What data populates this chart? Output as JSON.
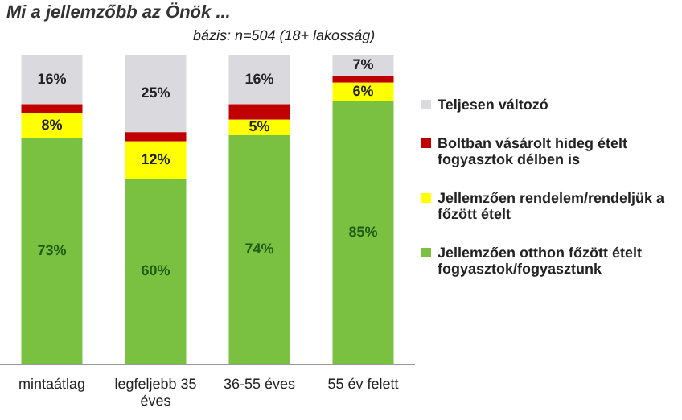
{
  "chart_data": {
    "type": "bar",
    "stacked": true,
    "title": "Mi a jellemzőbb az Önök ...",
    "subtitle": "bázis: n=504 (18+ lakosság)",
    "categories": [
      "mintaátlag",
      "legfeljebb 35 éves",
      "36-55 éves",
      "55 év felett"
    ],
    "series": [
      {
        "name": "Jellemzően otthon főzött ételt fogyasztok/fogyasztunk",
        "color": "#7ac142",
        "values": [
          73,
          60,
          74,
          85
        ],
        "value_labels": [
          "73%",
          "60%",
          "74%",
          "85%"
        ]
      },
      {
        "name": "Jellemzően rendelem/rendeljük a főzött ételt",
        "color": "#ffff00",
        "values": [
          8,
          12,
          5,
          6
        ],
        "value_labels": [
          "8%",
          "12%",
          "5%",
          "6%"
        ]
      },
      {
        "name": "Boltban vásárolt hideg ételt fogyasztok délben is",
        "color": "#c00000",
        "values": [
          3,
          3,
          5,
          2
        ],
        "value_labels": [
          null,
          null,
          null,
          null
        ]
      },
      {
        "name": "Teljesen változó",
        "color": "#d9d9de",
        "values": [
          16,
          25,
          16,
          7
        ],
        "value_labels": [
          "16%",
          "25%",
          "16%",
          "7%"
        ]
      }
    ],
    "legend": "right",
    "grid": false
  }
}
